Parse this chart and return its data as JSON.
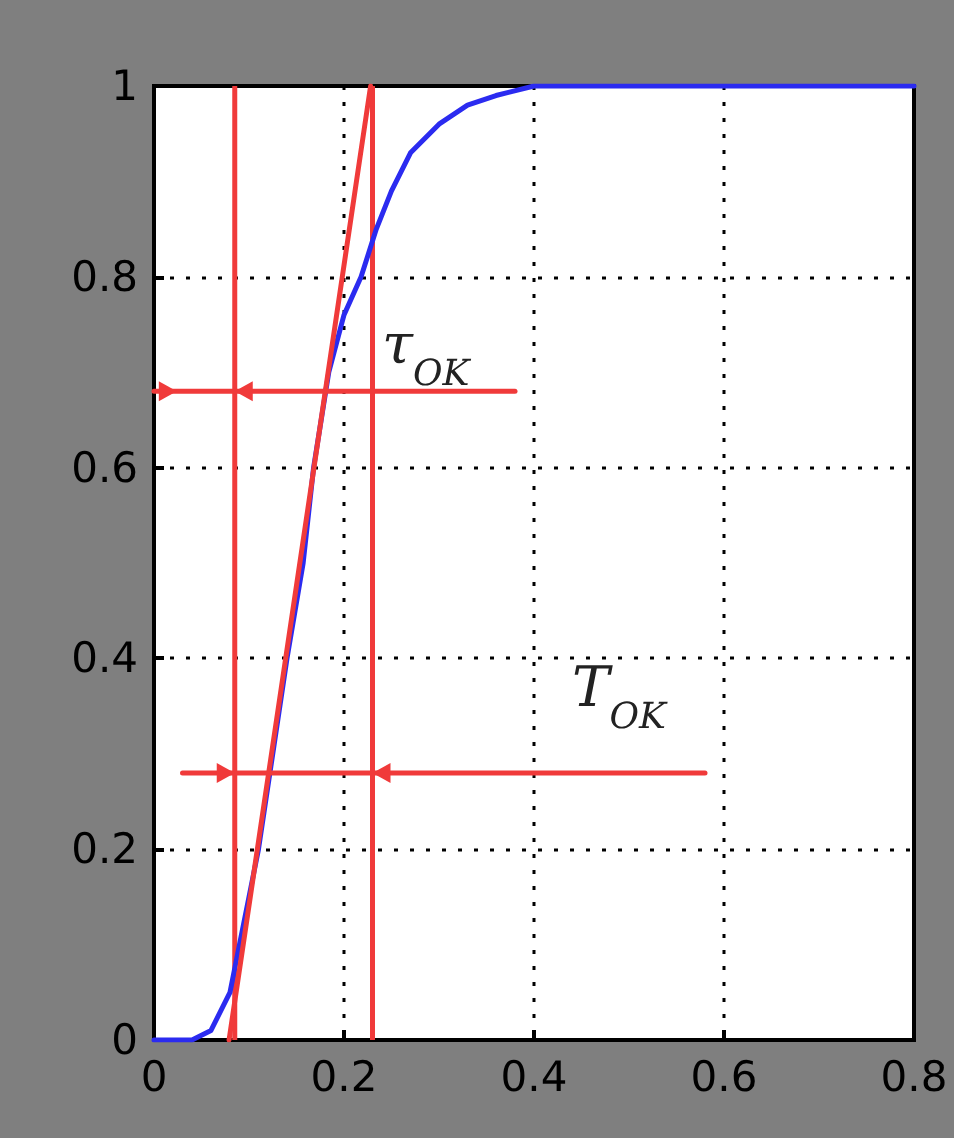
{
  "chart_data": {
    "type": "line",
    "series": [
      {
        "color": "#2b2bf0",
        "x": [
          0,
          0.04,
          0.06,
          0.07,
          0.08,
          0.09,
          0.1,
          0.11,
          0.125,
          0.14,
          0.157,
          0.168,
          0.184,
          0.2,
          0.218,
          0.234,
          0.25,
          0.27,
          0.3,
          0.33,
          0.36,
          0.4,
          0.8
        ],
        "values": [
          0,
          0,
          0.01,
          0.03,
          0.05,
          0.1,
          0.15,
          0.2,
          0.3,
          0.4,
          0.5,
          0.6,
          0.7,
          0.76,
          0.8,
          0.85,
          0.89,
          0.93,
          0.96,
          0.98,
          0.99,
          1,
          1
        ]
      },
      {
        "type": "line",
        "color": "#f03a3a",
        "x": [
          0.079,
          0.228
        ],
        "values": [
          0,
          1
        ]
      },
      {
        "type": "line",
        "color": "#f03a3a",
        "x": [
          0,
          0.38
        ],
        "values": [
          0.68,
          0.68
        ]
      },
      {
        "type": "line",
        "color": "#f03a3a",
        "x": [
          0.03,
          0.58
        ],
        "values": [
          0.28,
          0.28
        ]
      }
    ],
    "xlim": [
      0,
      0.8
    ],
    "ylim": [
      0,
      1
    ],
    "xticks": [
      0,
      0.2,
      0.4,
      0.6,
      0.8
    ],
    "yticks": [
      0,
      0.2,
      0.4,
      0.6,
      0.8,
      1
    ],
    "grid": true,
    "marker": "none",
    "ref_lines": [
      {
        "axis": "x",
        "value": 0.085,
        "color": "#f03a3a"
      },
      {
        "axis": "x",
        "value": 0.23,
        "color": "#f03a3a"
      }
    ],
    "annotations": [
      "τ$_{OK}$",
      "T$_{OK}$"
    ]
  }
}
